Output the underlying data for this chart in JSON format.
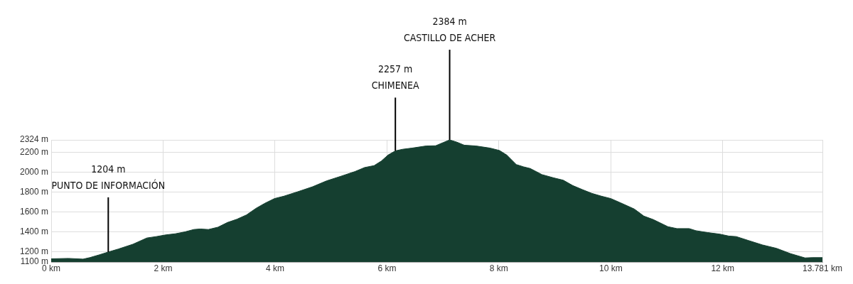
{
  "chart_data": {
    "type": "area",
    "grid": true,
    "x": [
      0,
      0.31,
      0.57,
      0.69,
      0.86,
      1.02,
      1.2,
      1.46,
      1.71,
      1.88,
      2.05,
      2.22,
      2.39,
      2.55,
      2.66,
      2.81,
      2.98,
      3.15,
      3.32,
      3.49,
      3.66,
      3.82,
      3.99,
      4.16,
      4.42,
      4.67,
      4.92,
      5.18,
      5.43,
      5.6,
      5.77,
      5.9,
      6.02,
      6.15,
      6.28,
      6.45,
      6.7,
      6.87,
      7,
      7.12,
      7.25,
      7.38,
      7.59,
      7.84,
      8.01,
      8.14,
      8.31,
      8.44,
      8.56,
      8.77,
      8.98,
      9.15,
      9.32,
      9.49,
      9.66,
      9.83,
      10,
      10.17,
      10.42,
      10.59,
      10.76,
      11.02,
      11.18,
      11.4,
      11.52,
      11.73,
      11.95,
      12.11,
      12.24,
      12.45,
      12.71,
      12.96,
      13.21,
      13.47,
      13.6,
      13.781
    ],
    "series": [
      {
        "color": "#153f30",
        "values": [
          1132,
          1136,
          1129,
          1144,
          1172,
          1200,
          1230,
          1278,
          1341,
          1355,
          1372,
          1383,
          1402,
          1426,
          1431,
          1426,
          1449,
          1496,
          1529,
          1572,
          1638,
          1689,
          1736,
          1760,
          1807,
          1854,
          1913,
          1960,
          2007,
          2047,
          2066,
          2112,
          2172,
          2214,
          2230,
          2242,
          2263,
          2265,
          2296,
          2324,
          2301,
          2271,
          2263,
          2242,
          2218,
          2172,
          2077,
          2054,
          2037,
          1976,
          1943,
          1920,
          1866,
          1826,
          1788,
          1760,
          1736,
          1694,
          1631,
          1560,
          1525,
          1454,
          1435,
          1435,
          1414,
          1395,
          1379,
          1360,
          1355,
          1317,
          1271,
          1237,
          1184,
          1141,
          1144,
          1144
        ]
      }
    ],
    "xlim": [
      0,
      13.781
    ],
    "xticks": [
      {
        "value": 0,
        "label": "0 km"
      },
      {
        "value": 2,
        "label": "2 km"
      },
      {
        "value": 4,
        "label": "4 km"
      },
      {
        "value": 6,
        "label": "6 km"
      },
      {
        "value": 8,
        "label": "8 km"
      },
      {
        "value": 10,
        "label": "10 km"
      },
      {
        "value": 12,
        "label": "12 km"
      },
      {
        "value": 13.781,
        "label": "13.781 km"
      }
    ],
    "ylim": [
      1100,
      2324
    ],
    "yticks": [
      {
        "value": 1100,
        "label": "1100 m"
      },
      {
        "value": 1200,
        "label": "1200 m"
      },
      {
        "value": 1400,
        "label": "1400 m"
      },
      {
        "value": 1600,
        "label": "1600 m"
      },
      {
        "value": 1800,
        "label": "1800 m"
      },
      {
        "value": 2000,
        "label": "2000 m"
      },
      {
        "value": 2200,
        "label": "2200 m"
      },
      {
        "value": 2324,
        "label": "2324 m"
      }
    ],
    "annotations": [
      {
        "text": "1204 m\nPUNTO DE INFORMACIÓN",
        "x": 1.02,
        "y": 1200
      },
      {
        "text": "2257 m\nCHIMENEA",
        "x": 6.15,
        "y": 2214
      },
      {
        "text": "2384 m\nCASTILLO DE ACHER",
        "x": 7.12,
        "y": 2324
      }
    ]
  }
}
